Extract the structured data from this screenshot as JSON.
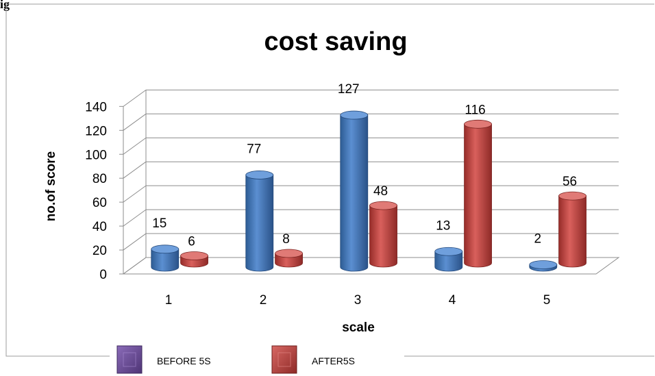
{
  "page": {
    "top_fragment": "ig"
  },
  "chart_data": {
    "type": "bar",
    "title": "cost saving",
    "xlabel": "scale",
    "ylabel": "no.of score",
    "categories": [
      "1",
      "2",
      "3",
      "4",
      "5"
    ],
    "series": [
      {
        "name": "BEFORE 5S",
        "values": [
          15,
          77,
          127,
          13,
          2
        ],
        "color": "#4a7ebb",
        "legend_color": "#6f4e9b"
      },
      {
        "name": "AFTER5S",
        "values": [
          6,
          8,
          48,
          116,
          56
        ],
        "color": "#c0504d",
        "legend_color": "#c0504d"
      }
    ],
    "yticks": [
      "0",
      "20",
      "40",
      "60",
      "80",
      "100",
      "120",
      "140"
    ],
    "ylim": [
      0,
      140
    ],
    "grid": true,
    "style": "3d-cylinder",
    "legend_position": "bottom"
  }
}
